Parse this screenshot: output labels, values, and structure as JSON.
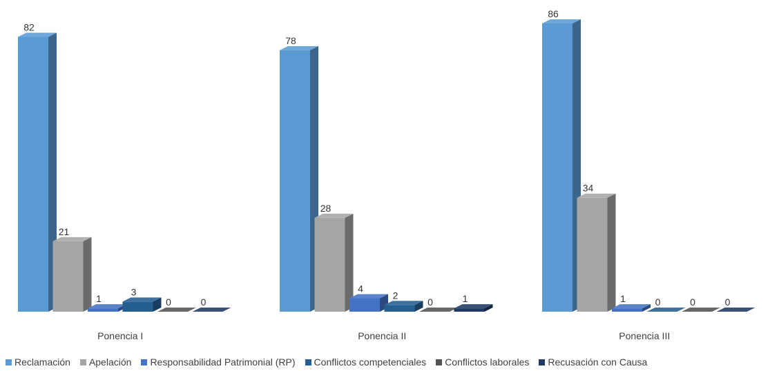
{
  "chart_data": {
    "type": "bar",
    "title": "",
    "xlabel": "",
    "ylabel": "",
    "ylim": [
      0,
      86
    ],
    "grid": false,
    "legend_position": "bottom",
    "categories": [
      "Ponencia I",
      "Ponencia II",
      "Ponencia III"
    ],
    "series": [
      {
        "name": "Reclamación",
        "values": [
          82,
          78,
          86
        ],
        "color": "#5b9bd5"
      },
      {
        "name": "Apelación",
        "values": [
          21,
          28,
          34
        ],
        "color": "#a5a5a5"
      },
      {
        "name": "Responsabilidad Patrimonial (RP)",
        "values": [
          1,
          4,
          1
        ],
        "color": "#4472c4"
      },
      {
        "name": "Conflictos competenciales",
        "values": [
          3,
          2,
          0
        ],
        "color": "#255e91"
      },
      {
        "name": "Conflictos laborales",
        "values": [
          0,
          0,
          0
        ],
        "color": "#525252"
      },
      {
        "name": "Recusación con Causa",
        "values": [
          0,
          1,
          0
        ],
        "color": "#203864"
      }
    ]
  }
}
